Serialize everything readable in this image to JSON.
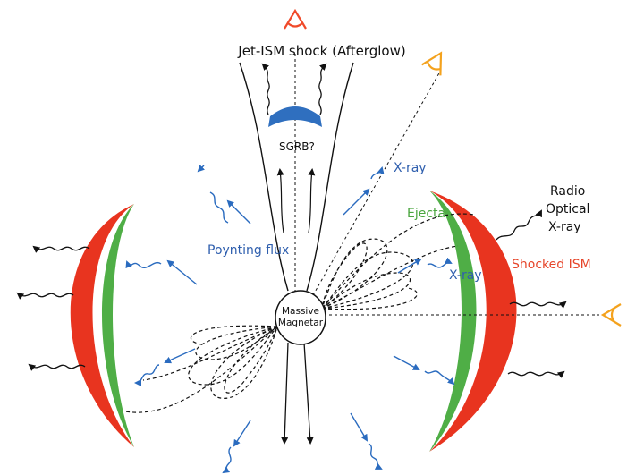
{
  "labels": {
    "jet_shock": "Jet-ISM shock (Afterglow)",
    "sgrb": "SGRB?",
    "xray_upper": "X-ray",
    "xray_mid": "X-ray",
    "ejecta": "Ejecta",
    "radio": "Radio",
    "optical": "Optical",
    "xray_right": "X-ray",
    "shocked_ism": "Shocked ISM",
    "poynting": "Poynting flux",
    "magnetar_line1": "Massive",
    "magnetar_line2": "Magnetar"
  },
  "colors": {
    "arrow_blue": "#2a6bbf",
    "ejecta_green": "#4fae46",
    "ism_red": "#e8341f",
    "observer_red": "#f04a2a",
    "observer_orange": "#f4a21d",
    "sgrb_blue": "#2f6fbf",
    "label_blue": "#2f5fae",
    "label_green": "#4aa63f",
    "label_red": "#e6452a"
  },
  "icons": [
    "observer-eye-icon",
    "observer-eye-icon",
    "observer-eye-icon"
  ]
}
